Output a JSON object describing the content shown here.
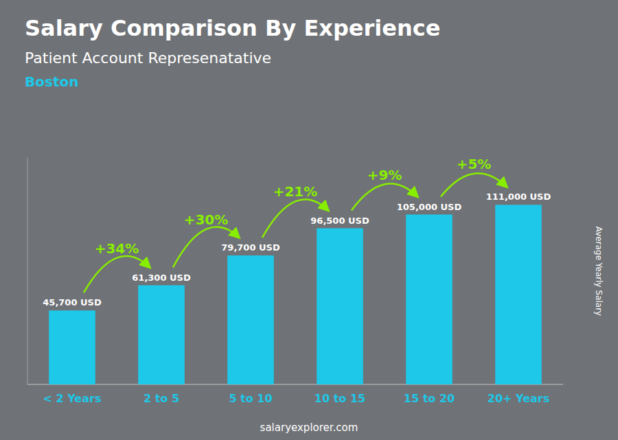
{
  "chart_data": {
    "type": "bar",
    "title": "Salary Comparison By Experience",
    "subtitle": "Patient Account Represenatative",
    "location": "Boston",
    "ylabel": "Average Yearly Salary",
    "source": "salaryexplorer.com",
    "categories": [
      "< 2 Years",
      "2 to 5",
      "5 to 10",
      "10 to 15",
      "15 to 20",
      "20+ Years"
    ],
    "values": [
      45700,
      61300,
      79700,
      96500,
      105000,
      111000
    ],
    "value_labels": [
      "45,700 USD",
      "61,300 USD",
      "79,700 USD",
      "96,500 USD",
      "105,000 USD",
      "111,000 USD"
    ],
    "data_labels": true,
    "annotations": [
      "+34%",
      "+30%",
      "+21%",
      "+9%",
      "+5%"
    ],
    "color": "#1EC8E8",
    "ylim": [
      0,
      140000
    ],
    "tick_labels": "x",
    "grid": false
  }
}
